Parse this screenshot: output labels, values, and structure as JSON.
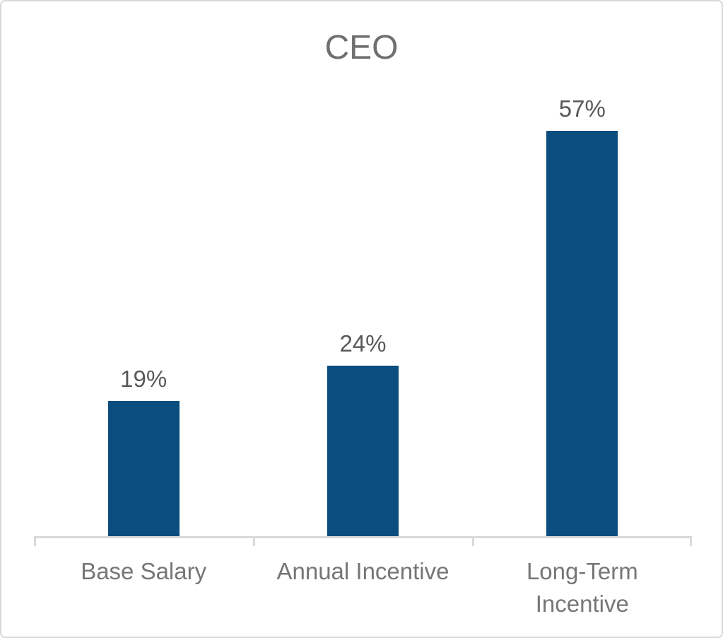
{
  "chart_data": {
    "type": "bar",
    "title": "CEO",
    "categories": [
      "Base Salary",
      "Annual Incentive",
      "Long-Term\nIncentive"
    ],
    "values": [
      19,
      24,
      57
    ],
    "value_labels": [
      "19%",
      "24%",
      "57%"
    ],
    "xlabel": "",
    "ylabel": "",
    "ylim": [
      0,
      60
    ],
    "grid": false,
    "legend": "none",
    "data_labels_position": "above-bar",
    "bar_color": "#0a4d7e",
    "axis_color": "#d9d9d9",
    "title_color": "#6f6f6f",
    "value_label_color": "#595959",
    "category_label_color": "#767676",
    "border_color": "#d9d9d9"
  }
}
